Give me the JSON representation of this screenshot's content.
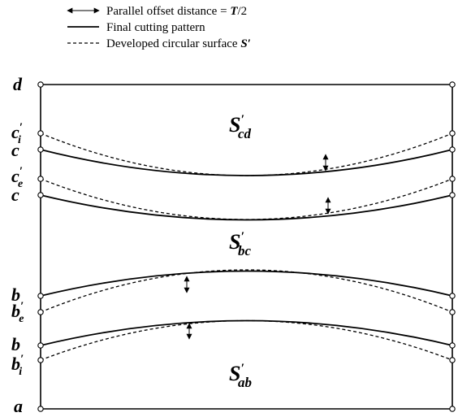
{
  "legend": {
    "offset_text": "Parallel offset distance = ",
    "offset_var": "T",
    "offset_tail": "/2",
    "cutting_text": "Final cutting pattern",
    "surface_text": "Developed circular surface ",
    "surface_var": "S",
    "surface_prime": "′"
  },
  "edges": {
    "d": "d",
    "c_i": {
      "base": "c",
      "sup": "′",
      "sub": "i"
    },
    "c1": "c",
    "c_e": {
      "base": "c",
      "sup": "′",
      "sub": "e"
    },
    "c2": "c",
    "b1": "b",
    "b_e": {
      "base": "b",
      "sup": "′",
      "sub": "e"
    },
    "b2": "b",
    "b_i": {
      "base": "b",
      "sup": "′",
      "sub": "i"
    },
    "a": "a"
  },
  "regions": {
    "cd": {
      "base": "S",
      "sup": "′",
      "sub": "cd"
    },
    "bc": {
      "base": "S",
      "sup": "′",
      "sub": "bc"
    },
    "ab": {
      "base": "S",
      "sup": "′",
      "sub": "ab"
    }
  }
}
